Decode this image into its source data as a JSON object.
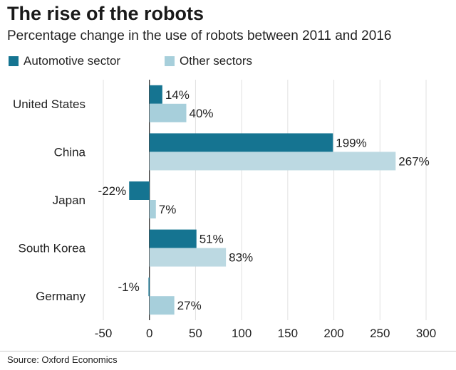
{
  "colors": {
    "automotive": "#157491",
    "other": "#a7cfdb",
    "other_light": "#bcd9e2",
    "grid": "#e1e1e1",
    "zero": "#222222"
  },
  "chart_data": {
    "type": "bar",
    "orientation": "horizontal",
    "title": "The rise of the robots",
    "subtitle": "Percentage change in the use of robots between 2011 and 2016",
    "categories": [
      "United States",
      "China",
      "Japan",
      "South Korea",
      "Germany"
    ],
    "series": [
      {
        "name": "Automotive sector",
        "values": [
          14,
          199,
          -22,
          51,
          -1
        ],
        "labels": [
          "14%",
          "199%",
          "-22%",
          "51%",
          "-1%"
        ]
      },
      {
        "name": "Other sectors",
        "values": [
          40,
          267,
          7,
          83,
          27
        ],
        "labels": [
          "40%",
          "267%",
          "7%",
          "83%",
          "27%"
        ]
      }
    ],
    "xlim": [
      -50,
      300
    ],
    "xticks": [
      "-50",
      "0",
      "50",
      "100",
      "150",
      "200",
      "250",
      "300"
    ],
    "grid": true,
    "legend": "top-left",
    "source": "Source: Oxford Economics"
  }
}
